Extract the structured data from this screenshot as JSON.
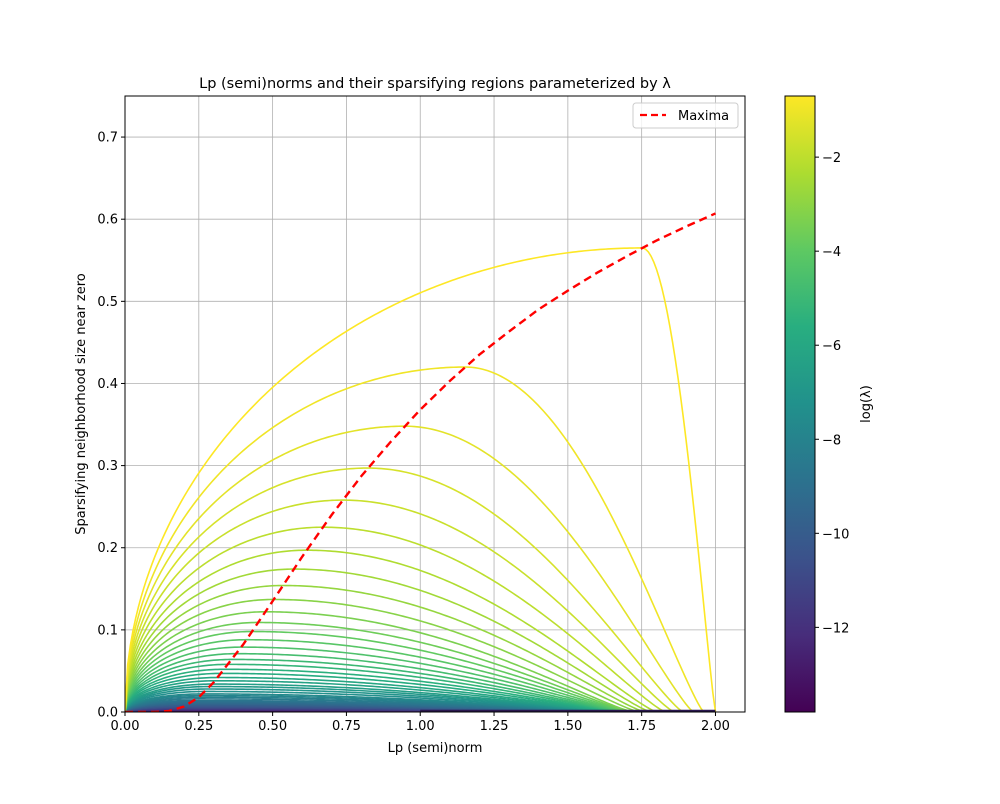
{
  "chart_data": {
    "type": "line",
    "title": "Lp (semi)norms and their sparsifying regions parameterized by λ",
    "xlabel": "Lp (semi)norm",
    "ylabel": "Sparsifying neighborhood size near zero",
    "xlim": [
      0,
      2.1
    ],
    "ylim": [
      0,
      0.75
    ],
    "grid": true,
    "x_ticks": [
      "0.00",
      "0.25",
      "0.50",
      "0.75",
      "1.00",
      "1.25",
      "1.50",
      "1.75",
      "2.00"
    ],
    "y_ticks": [
      "0.0",
      "0.1",
      "0.2",
      "0.3",
      "0.4",
      "0.5",
      "0.6",
      "0.7"
    ],
    "legend": {
      "placement": "top-right",
      "entries": [
        {
          "label": "Maxima",
          "color": "#ff0000",
          "style": "dashed"
        }
      ]
    },
    "colorbar": {
      "label": "log(λ)",
      "colormap": "viridis",
      "range": [
        -13.8,
        -0.7
      ],
      "ticks": [
        "−2",
        "−4",
        "−6",
        "−8",
        "−10",
        "−12"
      ],
      "tick_values": [
        -2,
        -4,
        -6,
        -8,
        -10,
        -12
      ]
    },
    "curves": {
      "log_lambda": [
        -0.7,
        -0.97,
        -1.23,
        -1.5,
        -1.77,
        -2.04,
        -2.3,
        -2.57,
        -2.84,
        -3.11,
        -3.37,
        -3.64,
        -3.91,
        -4.17,
        -4.44,
        -4.71,
        -4.98,
        -5.24,
        -5.51,
        -5.78,
        -6.05,
        -6.31,
        -6.58,
        -6.85,
        -7.12,
        -7.38,
        -7.65,
        -7.92,
        -8.19,
        -8.45,
        -8.72,
        -8.99,
        -9.25,
        -9.52,
        -9.79,
        -10.06,
        -10.32,
        -10.59,
        -10.86,
        -11.13,
        -11.39,
        -11.66,
        -11.93,
        -12.2,
        -12.46,
        -12.73,
        -13.0,
        -13.26,
        -13.53,
        -13.8
      ],
      "peak_y": [
        0.565,
        0.42,
        0.348,
        0.297,
        0.258,
        0.225,
        0.197,
        0.174,
        0.154,
        0.137,
        0.122,
        0.109,
        0.098,
        0.088,
        0.079,
        0.071,
        0.064,
        0.058,
        0.052,
        0.047,
        0.042,
        0.038,
        0.034,
        0.031,
        0.028,
        0.025,
        0.022,
        0.02,
        0.018,
        0.016,
        0.014,
        0.0125,
        0.011,
        0.0098,
        0.0087,
        0.0077,
        0.0068,
        0.006,
        0.0053,
        0.0047,
        0.0041,
        0.0036,
        0.0032,
        0.0028,
        0.0024,
        0.0021,
        0.0018,
        0.0015,
        0.0013,
        0.0011
      ],
      "zero_p": [
        2.0,
        1.96,
        1.925,
        1.89,
        1.86,
        1.83,
        1.8,
        1.78,
        1.76,
        1.74,
        1.72,
        1.716,
        1.712,
        1.708,
        1.704,
        1.7,
        1.696,
        1.692,
        1.688,
        1.684,
        1.68,
        1.676,
        1.672,
        1.668,
        1.664,
        1.66,
        1.656,
        1.652,
        1.648,
        1.644,
        1.64,
        1.636,
        1.632,
        1.628,
        1.624,
        1.62,
        1.616,
        1.612,
        1.608,
        1.604,
        1.6,
        1.6,
        1.6,
        1.6,
        1.6,
        1.6,
        1.6,
        1.6,
        1.6,
        1.6
      ]
    },
    "maxima": {
      "name": "Maxima",
      "x": [
        0,
        0.1,
        0.15,
        0.2,
        0.25,
        0.3,
        0.4,
        0.5,
        0.6,
        0.7,
        0.8,
        0.9,
        1.0,
        1.1,
        1.2,
        1.3,
        1.4,
        1.5,
        1.6,
        1.7,
        1.8,
        1.9,
        2.0
      ],
      "y": [
        0,
        0,
        0.0013,
        0.0067,
        0.018,
        0.036,
        0.082,
        0.135,
        0.189,
        0.24,
        0.287,
        0.329,
        0.368,
        0.403,
        0.435,
        0.463,
        0.49,
        0.513,
        0.535,
        0.555,
        0.574,
        0.591,
        0.607
      ]
    }
  }
}
